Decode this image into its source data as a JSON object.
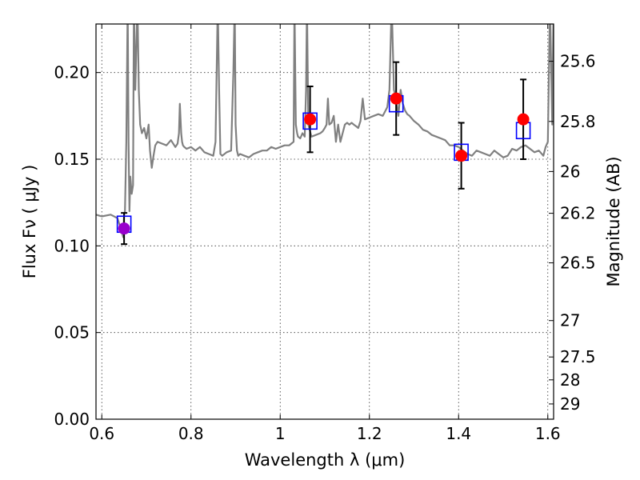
{
  "chart_data": {
    "type": "scatter",
    "xlabel": "Wavelength  λ (μm)",
    "ylabel": "Flux  Fν  ( μJy )",
    "ylabel_right": "Magnitude (AB)",
    "xlim": [
      0.587,
      1.613
    ],
    "ylim": [
      0.0,
      0.228
    ],
    "x_ticks": [
      0.6,
      0.8,
      1.0,
      1.2,
      1.4,
      1.6
    ],
    "x_tick_labels": [
      "0.6",
      "0.8",
      "1",
      "1.2",
      "1.4",
      "1.6"
    ],
    "y_ticks": [
      0.0,
      0.05,
      0.1,
      0.15,
      0.2
    ],
    "y_tick_labels": [
      "0.00",
      "0.05",
      "0.10",
      "0.15",
      "0.20"
    ],
    "right_axis_ticks": [
      {
        "label": "25.6",
        "flux": 0.2065
      },
      {
        "label": "25.8",
        "flux": 0.1718
      },
      {
        "label": "26",
        "flux": 0.1429
      },
      {
        "label": "26.2",
        "flux": 0.1188
      },
      {
        "label": "26.5",
        "flux": 0.0902
      },
      {
        "label": "27",
        "flux": 0.0569
      },
      {
        "label": "27.5",
        "flux": 0.0359
      },
      {
        "label": "28",
        "flux": 0.0227
      },
      {
        "label": "29",
        "flux": 0.0088
      }
    ],
    "grid": true,
    "series": [
      {
        "type": "line",
        "color": "#808080",
        "x": [
          0.587,
          0.6,
          0.62,
          0.635,
          0.645,
          0.648,
          0.65,
          0.652,
          0.655,
          0.658,
          0.66,
          0.662,
          0.664,
          0.667,
          0.67,
          0.672,
          0.675,
          0.68,
          0.683,
          0.686,
          0.69,
          0.695,
          0.7,
          0.705,
          0.708,
          0.712,
          0.716,
          0.72,
          0.725,
          0.735,
          0.745,
          0.755,
          0.765,
          0.77,
          0.773,
          0.775,
          0.778,
          0.78,
          0.782,
          0.785,
          0.79,
          0.8,
          0.81,
          0.82,
          0.83,
          0.84,
          0.85,
          0.855,
          0.86,
          0.863,
          0.866,
          0.87,
          0.88,
          0.89,
          0.895,
          0.898,
          0.9,
          0.903,
          0.906,
          0.91,
          0.92,
          0.93,
          0.94,
          0.95,
          0.96,
          0.97,
          0.98,
          0.99,
          1.0,
          1.01,
          1.02,
          1.03,
          1.032,
          1.035,
          1.038,
          1.04,
          1.045,
          1.05,
          1.055,
          1.058,
          1.06,
          1.063,
          1.07,
          1.08,
          1.09,
          1.095,
          1.1,
          1.104,
          1.107,
          1.11,
          1.115,
          1.12,
          1.125,
          1.13,
          1.135,
          1.14,
          1.145,
          1.15,
          1.155,
          1.16,
          1.165,
          1.17,
          1.175,
          1.18,
          1.185,
          1.19,
          1.2,
          1.21,
          1.22,
          1.23,
          1.24,
          1.245,
          1.25,
          1.255,
          1.26,
          1.265,
          1.27,
          1.275,
          1.28,
          1.285,
          1.29,
          1.3,
          1.31,
          1.32,
          1.33,
          1.34,
          1.35,
          1.36,
          1.37,
          1.38,
          1.39,
          1.4,
          1.41,
          1.42,
          1.43,
          1.44,
          1.45,
          1.46,
          1.47,
          1.48,
          1.49,
          1.5,
          1.51,
          1.52,
          1.53,
          1.54,
          1.55,
          1.56,
          1.57,
          1.58,
          1.59,
          1.595,
          1.6,
          1.605,
          1.61,
          1.613
        ],
        "y": [
          0.118,
          0.117,
          0.118,
          0.116,
          0.108,
          0.105,
          0.118,
          0.12,
          0.16,
          0.24,
          0.16,
          0.12,
          0.14,
          0.13,
          0.135,
          0.24,
          0.19,
          0.24,
          0.19,
          0.17,
          0.165,
          0.168,
          0.162,
          0.17,
          0.155,
          0.145,
          0.152,
          0.158,
          0.16,
          0.159,
          0.158,
          0.161,
          0.157,
          0.159,
          0.165,
          0.182,
          0.165,
          0.16,
          0.158,
          0.157,
          0.156,
          0.157,
          0.155,
          0.157,
          0.154,
          0.153,
          0.152,
          0.16,
          0.24,
          0.19,
          0.153,
          0.152,
          0.154,
          0.155,
          0.2,
          0.24,
          0.17,
          0.155,
          0.152,
          0.153,
          0.152,
          0.151,
          0.153,
          0.154,
          0.155,
          0.155,
          0.157,
          0.156,
          0.157,
          0.158,
          0.158,
          0.16,
          0.24,
          0.17,
          0.165,
          0.163,
          0.162,
          0.165,
          0.163,
          0.19,
          0.24,
          0.17,
          0.163,
          0.164,
          0.165,
          0.166,
          0.168,
          0.17,
          0.185,
          0.17,
          0.171,
          0.175,
          0.16,
          0.17,
          0.16,
          0.165,
          0.17,
          0.171,
          0.17,
          0.171,
          0.17,
          0.169,
          0.168,
          0.172,
          0.185,
          0.173,
          0.174,
          0.175,
          0.176,
          0.175,
          0.18,
          0.19,
          0.24,
          0.19,
          0.185,
          0.175,
          0.19,
          0.182,
          0.178,
          0.176,
          0.175,
          0.172,
          0.17,
          0.167,
          0.166,
          0.164,
          0.163,
          0.162,
          0.161,
          0.158,
          0.158,
          0.157,
          0.155,
          0.153,
          0.152,
          0.155,
          0.154,
          0.153,
          0.152,
          0.155,
          0.153,
          0.151,
          0.152,
          0.156,
          0.155,
          0.157,
          0.158,
          0.156,
          0.154,
          0.155,
          0.152,
          0.157,
          0.16,
          0.24,
          0.17,
          0.24
        ]
      }
    ],
    "points": [
      {
        "x": 0.65,
        "y": 0.11,
        "err": 0.009,
        "color": "#9900cc",
        "model_y": 0.1125
      },
      {
        "x": 1.067,
        "y": 0.173,
        "err": 0.019,
        "color": "#ff0000",
        "model_y": 0.172
      },
      {
        "x": 1.26,
        "y": 0.185,
        "err": 0.021,
        "color": "#ff0000",
        "model_y": 0.182
      },
      {
        "x": 1.406,
        "y": 0.152,
        "err": 0.019,
        "color": "#ff0000",
        "model_y": 0.154
      },
      {
        "x": 1.545,
        "y": 0.173,
        "err": 0.023,
        "color": "#ff0000",
        "model_y": 0.1665
      }
    ],
    "model_marker_color": "#0000ff"
  }
}
